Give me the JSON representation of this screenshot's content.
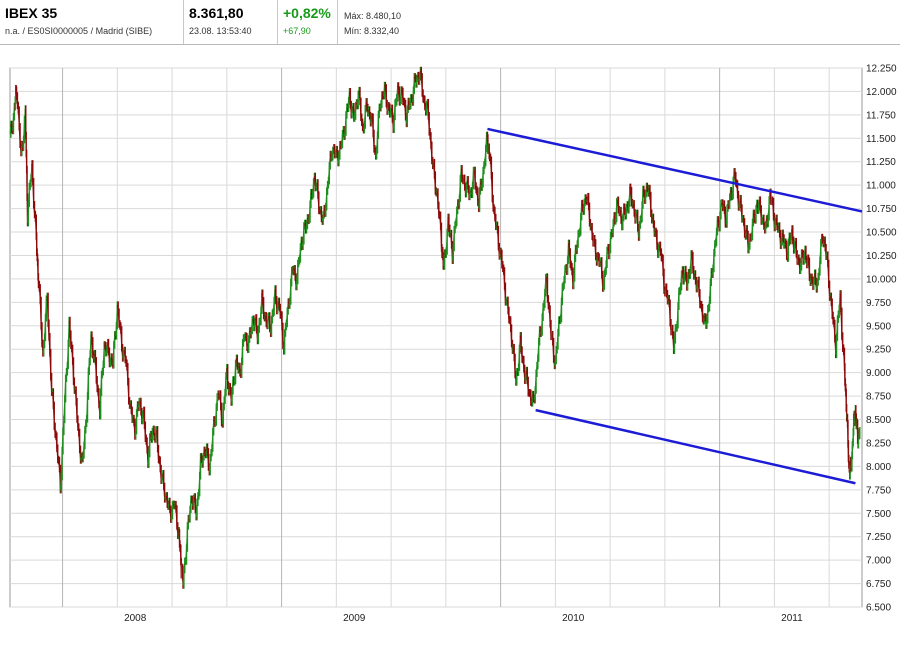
{
  "header": {
    "name": "IBEX 35",
    "subtitle": "n.a. / ES0SI0000005 / Madrid (SIBE)",
    "price": "8.361,80",
    "datetime": "23.08. 13:53:40",
    "change_pct": "+0,82%",
    "change_abs": "+67,90",
    "max_label": "Máx: 8.480,10",
    "min_label": "Mín: 8.332,40"
  },
  "colors": {
    "up": "#1f8f1f",
    "down": "#8c0a0a",
    "trend": "#1c1cd6",
    "grid": "#d9d9d9"
  },
  "chart_data": {
    "type": "line",
    "ylim": [
      6500,
      12250
    ],
    "yticks": [
      "12.250",
      "12.000",
      "11.750",
      "11.500",
      "11.250",
      "11.000",
      "10.750",
      "10.500",
      "10.250",
      "10.000",
      "9.750",
      "9.500",
      "9.250",
      "9.000",
      "8.750",
      "8.500",
      "8.250",
      "8.000",
      "7.750",
      "7.500",
      "7.250",
      "7.000",
      "6.750",
      "6.500"
    ],
    "xlabels": [
      {
        "label": "2008",
        "x": 2008.0
      },
      {
        "label": "2009",
        "x": 2009.0
      },
      {
        "label": "2010",
        "x": 2010.0
      },
      {
        "label": "2011",
        "x": 2011.0
      }
    ],
    "xlim": [
      2007.76,
      2011.65
    ],
    "series": [
      {
        "values": [
          [
            2007.76,
            11500
          ],
          [
            2007.78,
            11800
          ],
          [
            2007.79,
            12050
          ],
          [
            2007.81,
            11300
          ],
          [
            2007.83,
            11750
          ],
          [
            2007.84,
            10700
          ],
          [
            2007.86,
            11200
          ],
          [
            2007.88,
            10400
          ],
          [
            2007.89,
            10000
          ],
          [
            2007.91,
            9200
          ],
          [
            2007.93,
            9800
          ],
          [
            2007.95,
            8800
          ],
          [
            2007.97,
            8300
          ],
          [
            2007.99,
            7800
          ],
          [
            2008.01,
            8700
          ],
          [
            2008.03,
            9500
          ],
          [
            2008.05,
            9000
          ],
          [
            2008.07,
            8400
          ],
          [
            2008.09,
            8000
          ],
          [
            2008.11,
            8600
          ],
          [
            2008.13,
            9400
          ],
          [
            2008.15,
            9050
          ],
          [
            2008.17,
            8600
          ],
          [
            2008.19,
            9300
          ],
          [
            2008.21,
            9200
          ],
          [
            2008.23,
            9100
          ],
          [
            2008.25,
            9700
          ],
          [
            2008.27,
            9300
          ],
          [
            2008.29,
            9100
          ],
          [
            2008.31,
            8600
          ],
          [
            2008.33,
            8400
          ],
          [
            2008.35,
            8700
          ],
          [
            2008.37,
            8500
          ],
          [
            2008.39,
            8100
          ],
          [
            2008.41,
            8400
          ],
          [
            2008.43,
            8300
          ],
          [
            2008.45,
            7900
          ],
          [
            2008.47,
            7700
          ],
          [
            2008.49,
            7500
          ],
          [
            2008.51,
            7600
          ],
          [
            2008.53,
            7300
          ],
          [
            2008.54,
            7000
          ],
          [
            2008.55,
            6750
          ],
          [
            2008.57,
            7300
          ],
          [
            2008.59,
            7700
          ],
          [
            2008.61,
            7500
          ],
          [
            2008.63,
            8000
          ],
          [
            2008.65,
            8200
          ],
          [
            2008.67,
            8000
          ],
          [
            2008.69,
            8400
          ],
          [
            2008.71,
            8800
          ],
          [
            2008.73,
            8500
          ],
          [
            2008.75,
            9000
          ],
          [
            2008.77,
            8700
          ],
          [
            2008.79,
            9100
          ],
          [
            2008.81,
            9000
          ],
          [
            2008.83,
            9400
          ],
          [
            2008.85,
            9300
          ],
          [
            2008.87,
            9600
          ],
          [
            2008.89,
            9400
          ],
          [
            2008.91,
            9750
          ],
          [
            2008.93,
            9550
          ],
          [
            2008.95,
            9500
          ],
          [
            2008.97,
            9800
          ],
          [
            2008.99,
            9700
          ],
          [
            2009.01,
            9300
          ],
          [
            2009.03,
            9700
          ],
          [
            2009.05,
            10100
          ],
          [
            2009.07,
            10000
          ],
          [
            2009.09,
            10400
          ],
          [
            2009.11,
            10550
          ],
          [
            2009.13,
            10750
          ],
          [
            2009.15,
            11100
          ],
          [
            2009.17,
            10800
          ],
          [
            2009.19,
            10600
          ],
          [
            2009.21,
            11000
          ],
          [
            2009.23,
            11400
          ],
          [
            2009.25,
            11300
          ],
          [
            2009.27,
            11400
          ],
          [
            2009.29,
            11650
          ],
          [
            2009.31,
            11950
          ],
          [
            2009.33,
            11700
          ],
          [
            2009.35,
            12000
          ],
          [
            2009.37,
            11600
          ],
          [
            2009.39,
            11850
          ],
          [
            2009.41,
            11700
          ],
          [
            2009.43,
            11300
          ],
          [
            2009.45,
            11900
          ],
          [
            2009.47,
            12000
          ],
          [
            2009.49,
            11800
          ],
          [
            2009.51,
            11700
          ],
          [
            2009.53,
            12000
          ],
          [
            2009.55,
            11950
          ],
          [
            2009.57,
            11750
          ],
          [
            2009.59,
            11900
          ],
          [
            2009.61,
            12100
          ],
          [
            2009.63,
            12200
          ],
          [
            2009.65,
            11900
          ],
          [
            2009.67,
            11750
          ],
          [
            2009.69,
            11200
          ],
          [
            2009.71,
            10900
          ],
          [
            2009.73,
            10400
          ],
          [
            2009.74,
            10100
          ],
          [
            2009.76,
            10600
          ],
          [
            2009.78,
            10300
          ],
          [
            2009.8,
            10700
          ],
          [
            2009.82,
            11100
          ],
          [
            2009.84,
            11000
          ],
          [
            2009.86,
            10900
          ],
          [
            2009.88,
            11100
          ],
          [
            2009.9,
            10800
          ],
          [
            2009.92,
            11150
          ],
          [
            2009.94,
            11500
          ],
          [
            2009.95,
            11300
          ],
          [
            2009.97,
            10700
          ],
          [
            2009.99,
            10400
          ],
          [
            2010.01,
            10100
          ],
          [
            2010.03,
            9700
          ],
          [
            2010.05,
            9400
          ],
          [
            2010.07,
            8900
          ],
          [
            2010.09,
            9300
          ],
          [
            2010.11,
            9000
          ],
          [
            2010.13,
            8800
          ],
          [
            2010.15,
            8650
          ],
          [
            2010.17,
            9200
          ],
          [
            2010.19,
            9600
          ],
          [
            2010.21,
            10000
          ],
          [
            2010.23,
            9400
          ],
          [
            2010.25,
            9100
          ],
          [
            2010.27,
            9600
          ],
          [
            2010.29,
            10000
          ],
          [
            2010.31,
            10300
          ],
          [
            2010.33,
            10000
          ],
          [
            2010.35,
            10400
          ],
          [
            2010.37,
            10700
          ],
          [
            2010.39,
            10900
          ],
          [
            2010.41,
            10600
          ],
          [
            2010.43,
            10300
          ],
          [
            2010.45,
            10200
          ],
          [
            2010.47,
            9950
          ],
          [
            2010.49,
            10300
          ],
          [
            2010.51,
            10500
          ],
          [
            2010.53,
            10800
          ],
          [
            2010.55,
            10650
          ],
          [
            2010.57,
            10700
          ],
          [
            2010.59,
            10900
          ],
          [
            2010.61,
            10750
          ],
          [
            2010.63,
            10500
          ],
          [
            2010.65,
            10850
          ],
          [
            2010.67,
            11000
          ],
          [
            2010.69,
            10700
          ],
          [
            2010.71,
            10400
          ],
          [
            2010.73,
            10300
          ],
          [
            2010.75,
            9900
          ],
          [
            2010.77,
            9700
          ],
          [
            2010.79,
            9250
          ],
          [
            2010.81,
            9700
          ],
          [
            2010.83,
            10100
          ],
          [
            2010.85,
            9950
          ],
          [
            2010.87,
            10200
          ],
          [
            2010.89,
            10000
          ],
          [
            2010.91,
            9800
          ],
          [
            2010.93,
            9500
          ],
          [
            2010.95,
            9700
          ],
          [
            2010.97,
            10200
          ],
          [
            2010.99,
            10550
          ],
          [
            2011.01,
            10800
          ],
          [
            2011.03,
            10650
          ],
          [
            2011.05,
            10900
          ],
          [
            2011.07,
            11100
          ],
          [
            2011.09,
            10800
          ],
          [
            2011.11,
            10600
          ],
          [
            2011.13,
            10350
          ],
          [
            2011.15,
            10550
          ],
          [
            2011.17,
            10800
          ],
          [
            2011.19,
            10700
          ],
          [
            2011.21,
            10500
          ],
          [
            2011.23,
            10900
          ],
          [
            2011.25,
            10650
          ],
          [
            2011.27,
            10500
          ],
          [
            2011.29,
            10400
          ],
          [
            2011.31,
            10300
          ],
          [
            2011.33,
            10500
          ],
          [
            2011.35,
            10250
          ],
          [
            2011.37,
            10150
          ],
          [
            2011.39,
            10300
          ],
          [
            2011.41,
            10050
          ],
          [
            2011.43,
            9950
          ],
          [
            2011.45,
            10000
          ],
          [
            2011.47,
            10500
          ],
          [
            2011.49,
            10200
          ],
          [
            2011.51,
            9700
          ],
          [
            2011.53,
            9300
          ],
          [
            2011.55,
            9800
          ],
          [
            2011.57,
            9000
          ],
          [
            2011.58,
            8600
          ],
          [
            2011.59,
            8000
          ],
          [
            2011.6,
            7950
          ],
          [
            2011.61,
            8400
          ],
          [
            2011.62,
            8600
          ],
          [
            2011.63,
            8300
          ],
          [
            2011.64,
            8380
          ]
        ]
      }
    ],
    "trendlines": [
      {
        "from": [
          2009.94,
          11600
        ],
        "to": [
          2011.65,
          10720
        ]
      },
      {
        "from": [
          2010.16,
          8600
        ],
        "to": [
          2011.62,
          7820
        ]
      }
    ]
  }
}
